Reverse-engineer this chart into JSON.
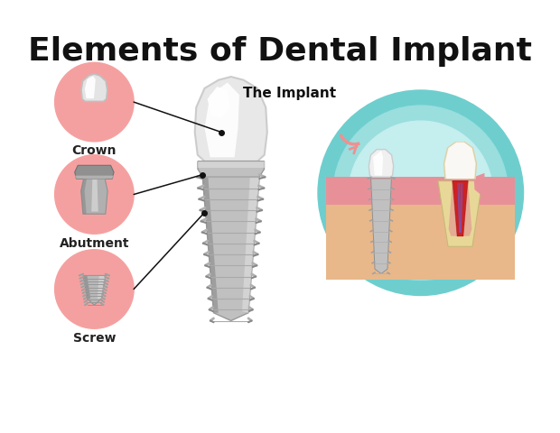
{
  "title": "Elements of Dental Implant",
  "title_fontsize": 26,
  "title_fontweight": "bold",
  "bg_color": "#ffffff",
  "pink_circle_color": "#f5a0a0",
  "label_crown": "Crown",
  "label_abutment": "Abutment",
  "label_screw": "Screw",
  "label_implant": "The Implant",
  "teal_outer_color": "#7dd4d4",
  "teal_mid_color": "#aae6e6",
  "teal_inner_color": "#d0f2f2",
  "arrow_color": "#f09090",
  "line_color": "#111111",
  "implant_crown_color": "#f8f8f8",
  "implant_crown_shadow": "#d0d0d0",
  "implant_metal_light": "#d0d0d0",
  "implant_metal_mid": "#aaaaaa",
  "implant_metal_dark": "#808080",
  "jaw_bone_color": "#e8b88a",
  "gum_color": "#e89098",
  "tooth_enamel": "#f5efd0",
  "tooth_dentin": "#e8d898",
  "tooth_pulp": "#bb2222",
  "tooth_white": "#f8f8f5"
}
